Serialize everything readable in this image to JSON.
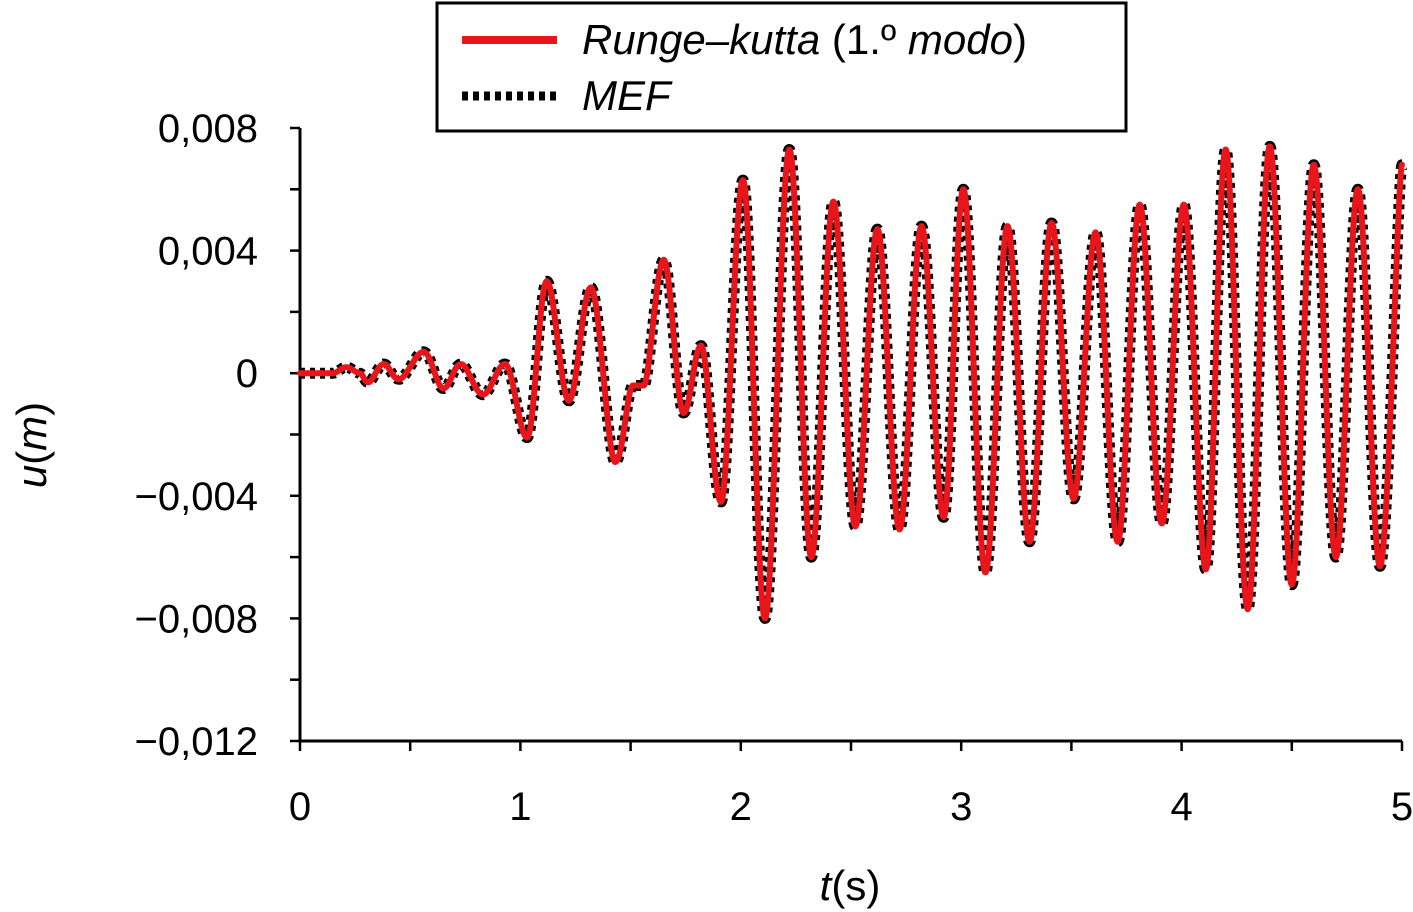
{
  "chart_data": {
    "type": "line",
    "xlabel": {
      "symbol": "t",
      "unit": "(s)"
    },
    "ylabel": {
      "symbol": "u",
      "open": "(",
      "unit": "m",
      "close": ")"
    },
    "xlim": [
      0,
      5
    ],
    "ylim": [
      -0.012,
      0.008
    ],
    "x_ticks": [
      "0",
      "1",
      "2",
      "3",
      "4",
      "5"
    ],
    "y_ticks": [
      "0,008",
      "0,004",
      "0",
      "−0,004",
      "−0,008",
      "−0,012"
    ],
    "grid": false,
    "legend": {
      "position": "top-center"
    },
    "series": [
      {
        "name": "Runge–kutta",
        "name_paren_open": " (1.º ",
        "name_mode": "modo",
        "name_paren_close": ")",
        "style": "solid",
        "color": "#e8161b",
        "points": [
          [
            0.0,
            0.0
          ],
          [
            0.1,
            0.0
          ],
          [
            0.15,
            0.0
          ],
          [
            0.21,
            0.0002
          ],
          [
            0.27,
            0.0
          ],
          [
            0.31,
            -0.0003
          ],
          [
            0.38,
            0.0003
          ],
          [
            0.45,
            -0.0002
          ],
          [
            0.56,
            0.0007
          ],
          [
            0.65,
            -0.0005
          ],
          [
            0.73,
            0.0003
          ],
          [
            0.83,
            -0.0007
          ],
          [
            0.93,
            0.0003
          ],
          [
            1.03,
            -0.0021
          ],
          [
            1.12,
            0.003
          ],
          [
            1.22,
            -0.0009
          ],
          [
            1.32,
            0.0028
          ],
          [
            1.43,
            -0.0029
          ],
          [
            1.51,
            -0.0004
          ],
          [
            1.56,
            -0.0004
          ],
          [
            1.65,
            0.0037
          ],
          [
            1.74,
            -0.0013
          ],
          [
            1.82,
            0.0009
          ],
          [
            1.91,
            -0.0042
          ],
          [
            2.01,
            0.0063
          ],
          [
            2.11,
            -0.008
          ],
          [
            2.22,
            0.0073
          ],
          [
            2.32,
            -0.006
          ],
          [
            2.42,
            0.0056
          ],
          [
            2.52,
            -0.005
          ],
          [
            2.62,
            0.0047
          ],
          [
            2.72,
            -0.0051
          ],
          [
            2.82,
            0.0048
          ],
          [
            2.92,
            -0.0047
          ],
          [
            3.01,
            0.006
          ],
          [
            3.11,
            -0.0065
          ],
          [
            3.21,
            0.0048
          ],
          [
            3.31,
            -0.0055
          ],
          [
            3.41,
            0.0049
          ],
          [
            3.51,
            -0.0041
          ],
          [
            3.61,
            0.0046
          ],
          [
            3.71,
            -0.0055
          ],
          [
            3.81,
            0.0055
          ],
          [
            3.91,
            -0.0049
          ],
          [
            4.01,
            0.0055
          ],
          [
            4.11,
            -0.0064
          ],
          [
            4.2,
            0.0073
          ],
          [
            4.3,
            -0.0077
          ],
          [
            4.4,
            0.0074
          ],
          [
            4.5,
            -0.0069
          ],
          [
            4.6,
            0.0068
          ],
          [
            4.7,
            -0.006
          ],
          [
            4.8,
            0.006
          ],
          [
            4.9,
            -0.0063
          ],
          [
            5.0,
            0.0068
          ]
        ]
      },
      {
        "name": "MEF",
        "style": "dotted",
        "color": "#000000",
        "same_as": "Runge–kutta"
      }
    ]
  }
}
